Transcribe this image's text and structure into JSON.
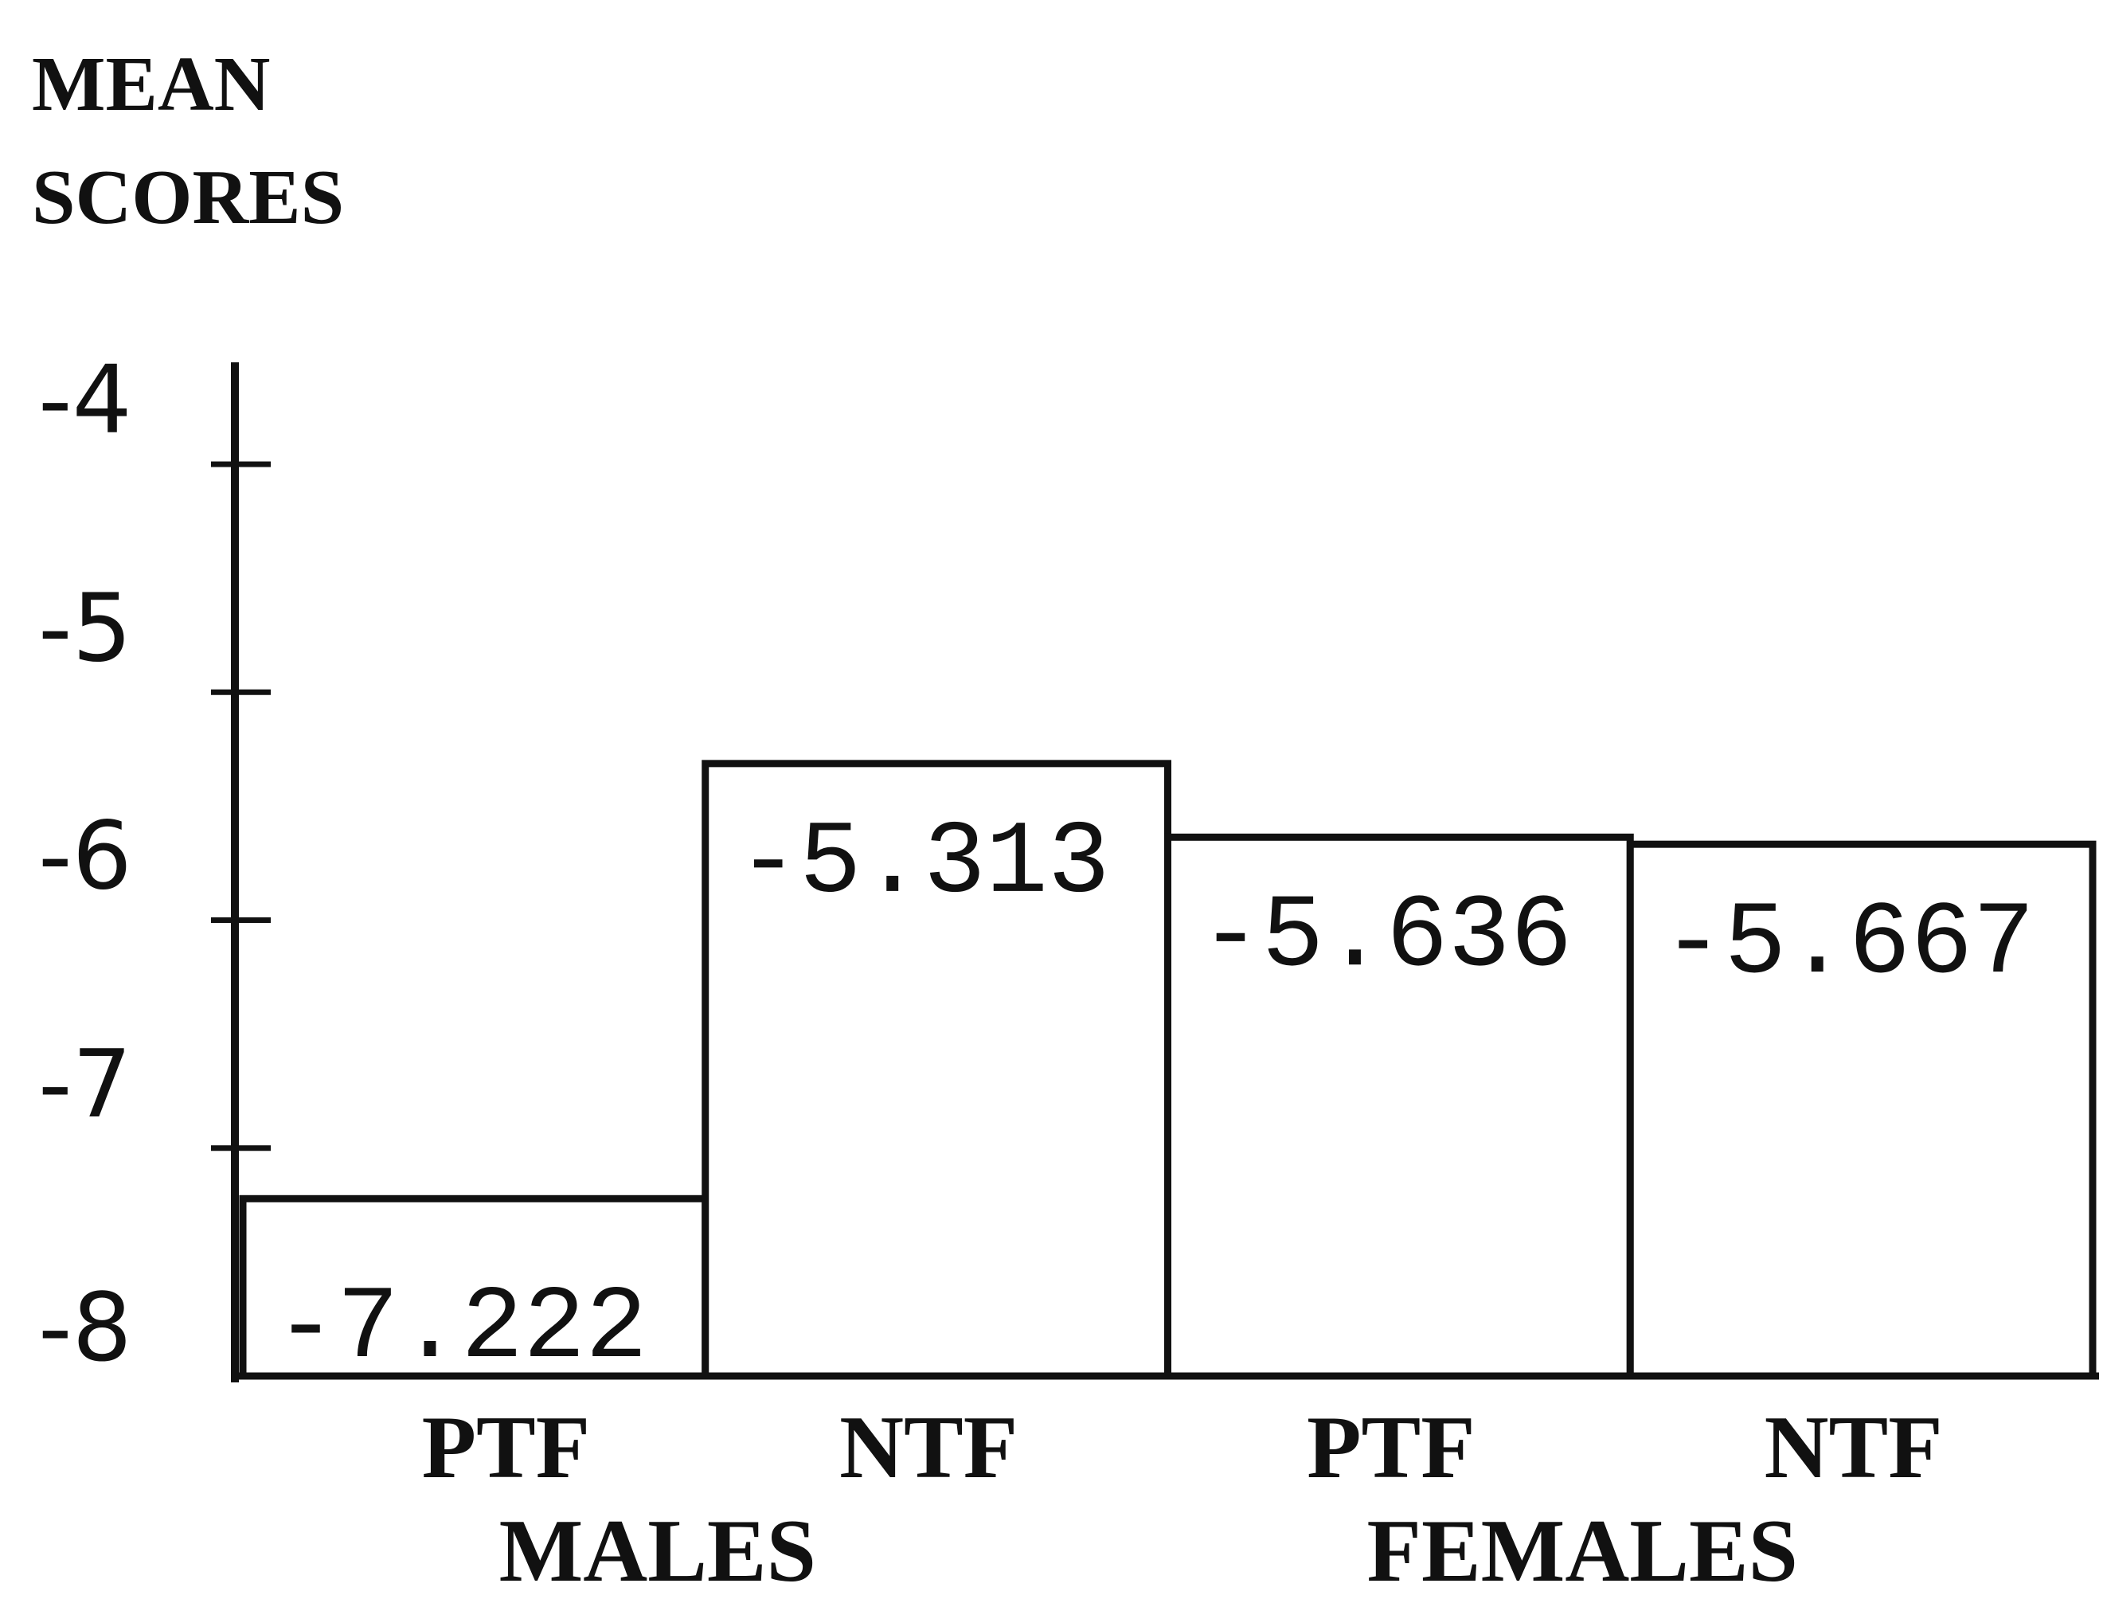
{
  "chart_data": {
    "type": "bar",
    "ylabel_lines": [
      "MEAN",
      "SCORES"
    ],
    "categories": [
      "PTF",
      "NTF",
      "PTF",
      "NTF"
    ],
    "groups": [
      "MALES",
      "FEMALES"
    ],
    "values": [
      -7.222,
      -5.313,
      -5.636,
      -5.667
    ],
    "value_labels": [
      "-7.222",
      "-5.313",
      "-5.636",
      "-5.667"
    ],
    "yticks": [
      -4,
      -5,
      -6,
      -7,
      -8
    ],
    "ytick_labels": [
      "-4",
      "-5",
      "-6",
      "-7",
      "-8"
    ],
    "ylim": [
      -8,
      -4
    ],
    "grid": false,
    "legend": "none",
    "bar_fill": "#ffffff",
    "stroke_color": "#111111"
  }
}
